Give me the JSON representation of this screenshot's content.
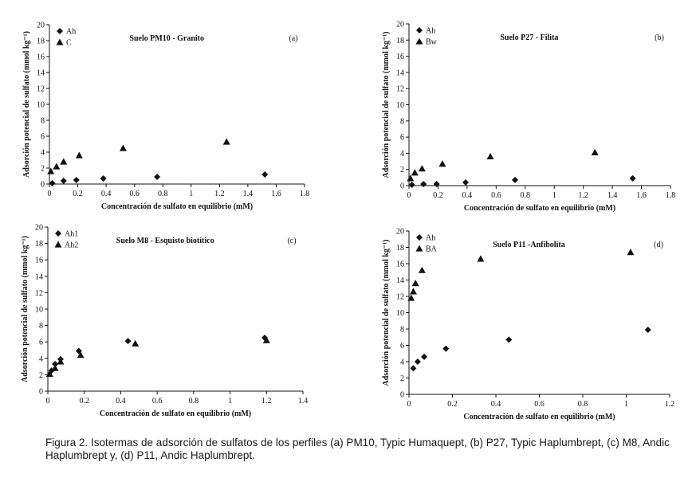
{
  "caption": "Figura 2. Isotermas de adsorción de sulfatos de los perfiles (a) PM10, Typic Humaquept, (b) P27, Typic Haplumbrept, (c) M8, Andic Haplumbrept y, (d) P11, Andic Haplumbrept.",
  "chart_data": [
    {
      "type": "scatter",
      "title": "Suelo PM10 - Granito",
      "panel_label": "(a)",
      "xlabel": "Concentración de sulfato en equilibrio (mM)",
      "ylabel": "Adsorción potencial de sulfato (mmol kg⁻¹)",
      "xlim": [
        0,
        1.8
      ],
      "ylim": [
        0,
        20
      ],
      "xticks": [
        0,
        0.2,
        0.4,
        0.6,
        0.8,
        1,
        1.2,
        1.4,
        1.6,
        1.8
      ],
      "yticks": [
        0,
        2,
        4,
        6,
        8,
        10,
        12,
        14,
        16,
        18,
        20
      ],
      "xtick_labels": [
        "0",
        "0.2",
        "0.4",
        "0.6",
        "0.8",
        "1",
        "1.2",
        "1.4",
        "1.6",
        "1.8"
      ],
      "ytick_labels": [
        "0",
        "2",
        "4",
        "6",
        "8",
        "10",
        "12",
        "14",
        "16",
        "18",
        "20"
      ],
      "grid": false,
      "legend": "top-left",
      "series": [
        {
          "name": "Ah",
          "marker": "diamond",
          "x": [
            0.02,
            0.1,
            0.19,
            0.38,
            0.76,
            1.52
          ],
          "y": [
            0.1,
            0.4,
            0.5,
            0.7,
            0.9,
            1.2
          ]
        },
        {
          "name": "C",
          "marker": "triangle",
          "x": [
            0.01,
            0.05,
            0.1,
            0.21,
            0.52,
            1.25
          ],
          "y": [
            1.6,
            2.2,
            2.8,
            3.6,
            4.5,
            5.3
          ]
        }
      ]
    },
    {
      "type": "scatter",
      "title": "Suelo P27 - Filita",
      "panel_label": "(b)",
      "xlabel": "Concentración de sulfato en equilibrio (mM)",
      "ylabel": "Adsorción potencial de sulfato (mmol kg⁻¹)",
      "xlim": [
        0,
        1.8
      ],
      "ylim": [
        0,
        20
      ],
      "xticks": [
        0,
        0.2,
        0.4,
        0.6,
        0.8,
        1,
        1.2,
        1.4,
        1.6,
        1.8
      ],
      "yticks": [
        0,
        2,
        4,
        6,
        8,
        10,
        12,
        14,
        16,
        18,
        20
      ],
      "xtick_labels": [
        "0",
        "0.2",
        "0.4",
        "0.6",
        "0.8",
        "1",
        "1.2",
        "1.4",
        "1.6",
        "1.8"
      ],
      "ytick_labels": [
        "0",
        "2",
        "4",
        "6",
        "8",
        "10",
        "12",
        "14",
        "16",
        "18",
        "20"
      ],
      "grid": false,
      "legend": "top-left",
      "series": [
        {
          "name": "Ah",
          "marker": "diamond",
          "x": [
            0.02,
            0.1,
            0.19,
            0.39,
            0.73,
            1.54
          ],
          "y": [
            0.1,
            0.2,
            0.2,
            0.4,
            0.7,
            0.9
          ]
        },
        {
          "name": "Bw",
          "marker": "triangle",
          "x": [
            0.01,
            0.04,
            0.09,
            0.23,
            0.56,
            1.28
          ],
          "y": [
            0.9,
            1.6,
            2.1,
            2.7,
            3.6,
            4.1
          ]
        }
      ]
    },
    {
      "type": "scatter",
      "title": "Suelo M8 - Esquisto biotítico",
      "panel_label": "(c)",
      "xlabel": "Concentración de sulfato en equilibrio (mM)",
      "ylabel": "Adsorción potencial de sulfato (mmol kg⁻¹)",
      "xlim": [
        0,
        1.4
      ],
      "ylim": [
        0,
        20
      ],
      "xticks": [
        0,
        0.2,
        0.4,
        0.6,
        0.8,
        1,
        1.2,
        1.4
      ],
      "yticks": [
        0,
        2,
        4,
        6,
        8,
        10,
        12,
        14,
        16,
        18,
        20
      ],
      "xtick_labels": [
        "0",
        "0.2",
        "0.4",
        "0.6",
        "0.8",
        "1",
        "1.2",
        "1.4"
      ],
      "ytick_labels": [
        "0",
        "2",
        "4",
        "6",
        "8",
        "10",
        "12",
        "14",
        "16",
        "18",
        "20"
      ],
      "grid": false,
      "legend": "top-left",
      "series": [
        {
          "name": "Ah1",
          "marker": "diamond",
          "x": [
            0.02,
            0.04,
            0.07,
            0.17,
            0.44,
            1.19
          ],
          "y": [
            2.5,
            3.3,
            3.9,
            4.9,
            6.1,
            6.5
          ]
        },
        {
          "name": "Ah2",
          "marker": "triangle",
          "x": [
            0.01,
            0.04,
            0.07,
            0.18,
            0.48,
            1.2
          ],
          "y": [
            2.1,
            2.8,
            3.6,
            4.4,
            5.8,
            6.2
          ]
        }
      ]
    },
    {
      "type": "scatter",
      "title": "Suelo P11 -Anfibolita",
      "panel_label": "(d)",
      "xlabel": "Concentración de sulfato en equilibrio (mM)",
      "ylabel": "Adsorción potencial de sulfato (mmol kg⁻¹)",
      "xlim": [
        0,
        1.2
      ],
      "ylim": [
        0,
        20
      ],
      "xticks": [
        0,
        0.2,
        0.4,
        0.6,
        0.8,
        1,
        1.2
      ],
      "yticks": [
        0,
        2,
        4,
        6,
        8,
        10,
        12,
        14,
        16,
        18,
        20
      ],
      "xtick_labels": [
        "0",
        "0.2",
        "0.4",
        "0.6",
        "0.8",
        "1",
        "1.2"
      ],
      "ytick_labels": [
        "0",
        "2",
        "4",
        "6",
        "8",
        "10",
        "12",
        "14",
        "16",
        "18",
        "20"
      ],
      "grid": false,
      "legend": "top-left",
      "series": [
        {
          "name": "Ah",
          "marker": "diamond",
          "x": [
            0.02,
            0.04,
            0.07,
            0.17,
            0.46,
            1.1
          ],
          "y": [
            3.2,
            4.0,
            4.6,
            5.6,
            6.7,
            7.9
          ]
        },
        {
          "name": "BA",
          "marker": "triangle",
          "x": [
            0.01,
            0.02,
            0.03,
            0.06,
            0.33,
            1.02
          ],
          "y": [
            11.8,
            12.6,
            13.6,
            15.2,
            16.6,
            17.4
          ]
        }
      ]
    }
  ]
}
